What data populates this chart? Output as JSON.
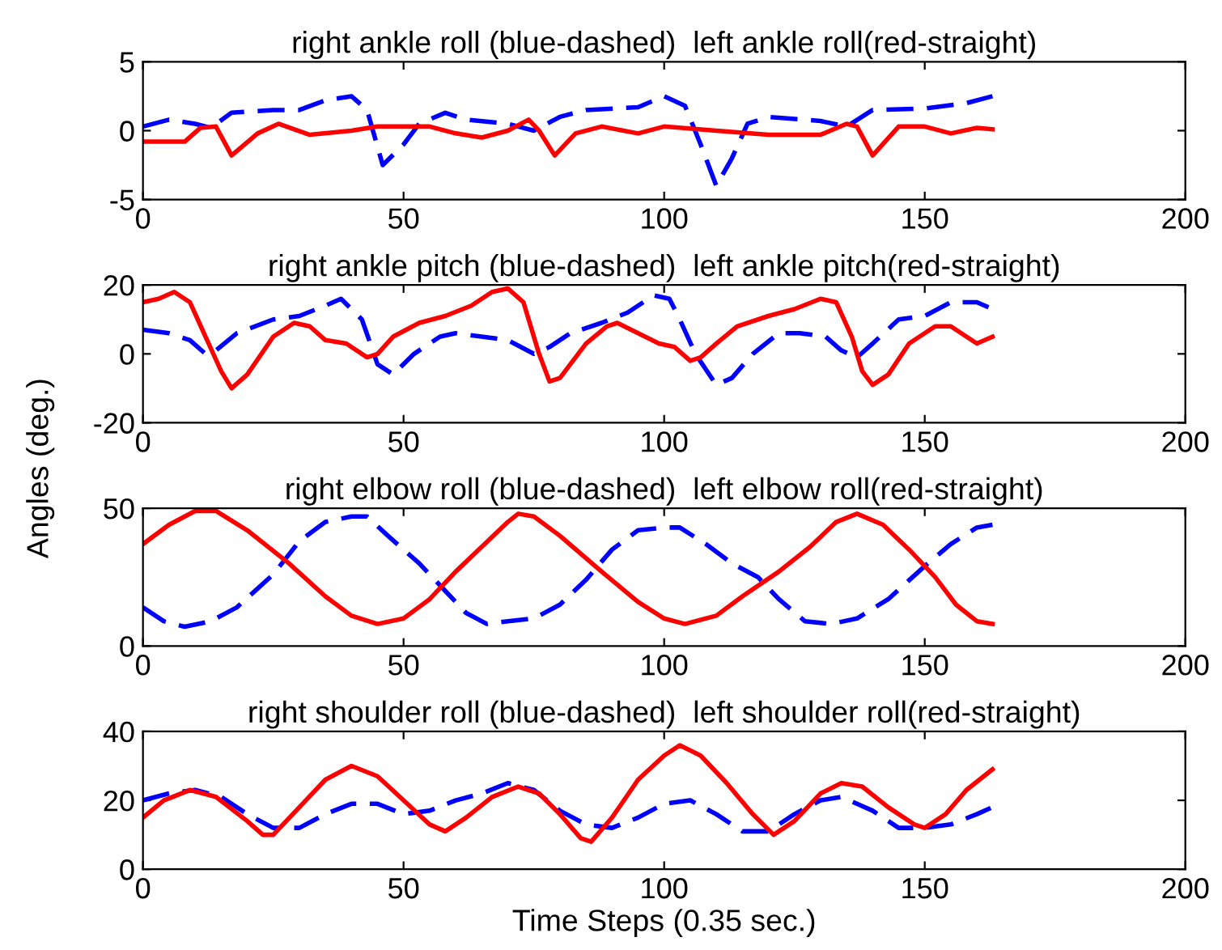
{
  "chart_data": [
    {
      "type": "line",
      "title": "right ankle roll (blue-dashed)  left ankle roll(red-straight)",
      "xlim": [
        0,
        200
      ],
      "xticks": [
        0,
        50,
        100,
        150,
        200
      ],
      "ylim": [
        -5,
        5
      ],
      "yticks": [
        -5,
        0,
        5
      ],
      "series": [
        {
          "color": "#0000ff",
          "line_style": "dashed",
          "x": [
            0,
            5,
            10,
            13,
            17,
            25,
            30,
            35,
            40,
            43,
            46,
            50,
            53,
            58,
            62,
            70,
            75,
            80,
            85,
            95,
            100,
            104,
            107,
            110,
            113,
            116,
            120,
            130,
            135,
            140,
            150,
            158,
            163
          ],
          "values": [
            0.3,
            0.8,
            0.5,
            0.2,
            1.3,
            1.5,
            1.5,
            2.2,
            2.5,
            1.5,
            -2.5,
            -1,
            0.5,
            1.3,
            0.8,
            0.5,
            0,
            1,
            1.5,
            1.7,
            2.5,
            1.8,
            -1,
            -4,
            -2,
            0.5,
            1,
            0.7,
            0.3,
            1.5,
            1.6,
            2,
            2.5
          ]
        },
        {
          "color": "#ff0000",
          "line_style": "solid",
          "x": [
            0,
            8,
            11,
            14,
            17,
            22,
            26,
            32,
            40,
            45,
            55,
            60,
            65,
            70,
            74,
            76,
            79,
            83,
            88,
            95,
            100,
            110,
            120,
            130,
            135,
            137,
            140,
            145,
            150,
            155,
            160,
            163
          ],
          "values": [
            -0.8,
            -0.8,
            0.2,
            0.3,
            -1.8,
            -0.2,
            0.5,
            -0.3,
            0,
            0.3,
            0.3,
            -0.2,
            -0.5,
            0,
            0.8,
            0,
            -1.8,
            -0.2,
            0.3,
            -0.2,
            0.3,
            0,
            -0.3,
            -0.3,
            0.5,
            0.3,
            -1.8,
            0.3,
            0.3,
            -0.2,
            0.2,
            0.1
          ]
        }
      ]
    },
    {
      "type": "line",
      "title": "right ankle pitch (blue-dashed)  left ankle pitch(red-straight)",
      "ylabel": "Angles (deg.)",
      "xlim": [
        0,
        200
      ],
      "xticks": [
        0,
        50,
        100,
        150,
        200
      ],
      "ylim": [
        -20,
        20
      ],
      "yticks": [
        -20,
        0,
        20
      ],
      "series": [
        {
          "color": "#0000ff",
          "line_style": "dashed",
          "x": [
            0,
            5,
            9,
            12,
            14,
            18,
            25,
            30,
            35,
            38,
            42,
            45,
            48,
            52,
            57,
            60,
            65,
            70,
            75,
            78,
            82,
            88,
            93,
            98,
            101,
            103,
            106,
            110,
            113,
            117,
            122,
            126,
            131,
            134,
            137,
            140,
            145,
            150,
            155,
            160,
            163
          ],
          "values": [
            7,
            6,
            4,
            0,
            1,
            6,
            10,
            11,
            14,
            16,
            10,
            -3,
            -6,
            0,
            5,
            6,
            5,
            4,
            0,
            2,
            6,
            9,
            12,
            17,
            16,
            10,
            0,
            -9,
            -7,
            0,
            6,
            6,
            5,
            1,
            -1,
            3,
            10,
            11,
            15,
            15,
            13
          ]
        },
        {
          "color": "#ff0000",
          "line_style": "solid",
          "x": [
            0,
            3,
            6,
            9,
            12,
            15,
            17,
            20,
            25,
            29,
            32,
            35,
            39,
            43,
            45,
            48,
            53,
            58,
            63,
            67,
            70,
            73,
            76,
            78,
            80,
            85,
            89,
            91,
            95,
            99,
            102,
            105,
            107,
            110,
            114,
            120,
            125,
            130,
            133,
            136,
            138,
            140,
            143,
            147,
            152,
            155,
            158,
            160,
            163
          ],
          "values": [
            15,
            16,
            18,
            15,
            5,
            -5,
            -10,
            -6,
            5,
            9,
            8,
            4,
            3,
            -1,
            0,
            5,
            9,
            11,
            14,
            18,
            19,
            15,
            0,
            -8,
            -7,
            3,
            8,
            9,
            6,
            3,
            2,
            -2,
            -1,
            3,
            8,
            11,
            13,
            16,
            15,
            5,
            -5,
            -9,
            -6,
            3,
            8,
            8,
            5,
            3,
            5
          ]
        }
      ]
    },
    {
      "type": "line",
      "title": "right elbow roll (blue-dashed)  left elbow roll(red-straight)",
      "xlim": [
        0,
        200
      ],
      "xticks": [
        0,
        50,
        100,
        150,
        200
      ],
      "ylim": [
        0,
        50
      ],
      "yticks": [
        0,
        50
      ],
      "series": [
        {
          "color": "#0000ff",
          "line_style": "dashed",
          "x": [
            0,
            4,
            8,
            13,
            18,
            25,
            30,
            35,
            40,
            43,
            47,
            53,
            58,
            62,
            66,
            70,
            75,
            80,
            85,
            90,
            95,
            100,
            103,
            108,
            113,
            118,
            122,
            127,
            132,
            137,
            143,
            150,
            155,
            160,
            163
          ],
          "values": [
            14,
            9,
            7,
            9,
            14,
            26,
            38,
            45,
            47,
            47,
            40,
            30,
            20,
            12,
            8,
            9,
            10,
            15,
            24,
            35,
            42,
            43,
            43,
            37,
            30,
            25,
            17,
            9,
            8,
            10,
            17,
            29,
            37,
            43,
            44
          ]
        },
        {
          "color": "#ff0000",
          "line_style": "solid",
          "x": [
            0,
            5,
            10,
            14,
            20,
            28,
            35,
            40,
            45,
            50,
            55,
            60,
            65,
            70,
            72,
            75,
            80,
            88,
            95,
            100,
            104,
            110,
            115,
            122,
            128,
            133,
            137,
            142,
            147,
            152,
            156,
            160,
            163
          ],
          "values": [
            37,
            44,
            49,
            49,
            42,
            30,
            18,
            11,
            8,
            10,
            17,
            27,
            36,
            45,
            48,
            47,
            40,
            27,
            16,
            10,
            8,
            11,
            18,
            27,
            36,
            45,
            48,
            44,
            35,
            25,
            15,
            9,
            8
          ]
        }
      ]
    },
    {
      "type": "line",
      "title": "right shoulder roll (blue-dashed)  left shoulder roll(red-straight)",
      "xlabel": "Time Steps (0.35 sec.)",
      "xlim": [
        0,
        200
      ],
      "xticks": [
        0,
        50,
        100,
        150,
        200
      ],
      "ylim": [
        0,
        40
      ],
      "yticks": [
        0,
        20,
        40
      ],
      "series": [
        {
          "color": "#0000ff",
          "line_style": "dashed",
          "x": [
            0,
            5,
            10,
            15,
            20,
            25,
            30,
            35,
            40,
            45,
            50,
            55,
            60,
            65,
            70,
            75,
            80,
            85,
            90,
            95,
            100,
            105,
            110,
            115,
            120,
            125,
            130,
            134,
            140,
            145,
            150,
            155,
            160,
            163
          ],
          "values": [
            20,
            22,
            23,
            21,
            16,
            12,
            12,
            16,
            19,
            19,
            16,
            17,
            20,
            22,
            25,
            23,
            17,
            13,
            12,
            15,
            19,
            20,
            16,
            11,
            11,
            16,
            20,
            21,
            17,
            12,
            12,
            13,
            16,
            18
          ]
        },
        {
          "color": "#ff0000",
          "line_style": "solid",
          "x": [
            0,
            4,
            9,
            14,
            20,
            23,
            25,
            30,
            35,
            40,
            45,
            50,
            55,
            58,
            62,
            67,
            72,
            76,
            80,
            84,
            86,
            90,
            95,
            100,
            103,
            107,
            112,
            117,
            121,
            125,
            130,
            134,
            138,
            143,
            148,
            150,
            154,
            158,
            163
          ],
          "values": [
            15,
            20,
            23,
            21,
            14,
            10,
            10,
            18,
            26,
            30,
            27,
            20,
            13,
            11,
            15,
            21,
            24,
            22,
            16,
            9,
            8,
            15,
            26,
            33,
            36,
            33,
            25,
            16,
            10,
            14,
            22,
            25,
            24,
            18,
            13,
            12,
            16,
            23,
            29
          ]
        }
      ]
    }
  ]
}
